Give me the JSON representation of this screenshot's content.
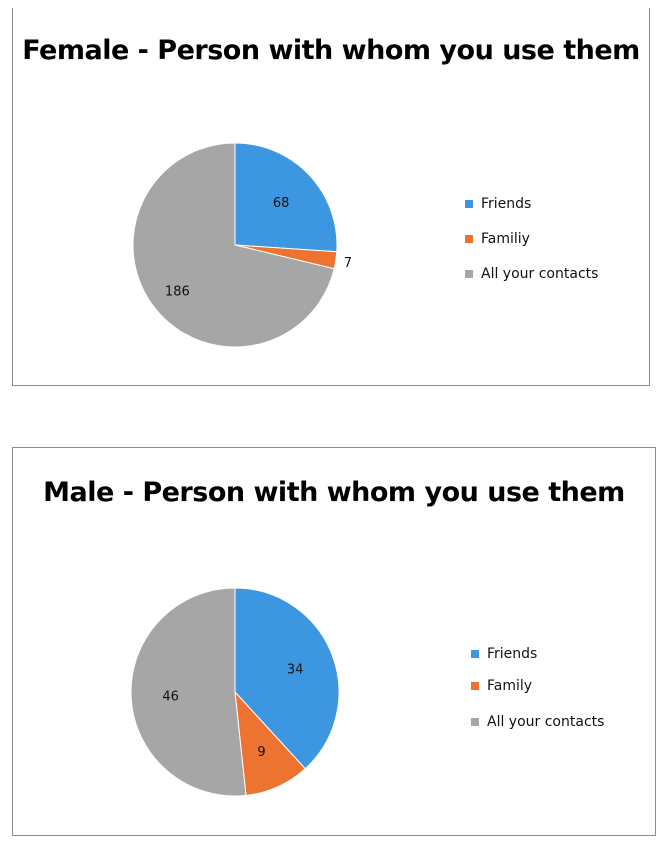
{
  "chart_data": [
    {
      "type": "pie",
      "title": "Female - Person with whom you use them",
      "legend_position": "right",
      "categories": [
        "Friends",
        "Familiy",
        "All your contacts"
      ],
      "values": [
        68,
        7,
        186
      ],
      "colors": [
        "#3d97e0",
        "#ed7331",
        "#a6a6a6"
      ]
    },
    {
      "type": "pie",
      "title": "Male - Person with whom you use them",
      "legend_position": "right",
      "categories": [
        "Friends",
        "Family",
        "All your contacts"
      ],
      "values": [
        34,
        9,
        46
      ],
      "colors": [
        "#3d97e0",
        "#ed7331",
        "#a6a6a6"
      ]
    }
  ]
}
